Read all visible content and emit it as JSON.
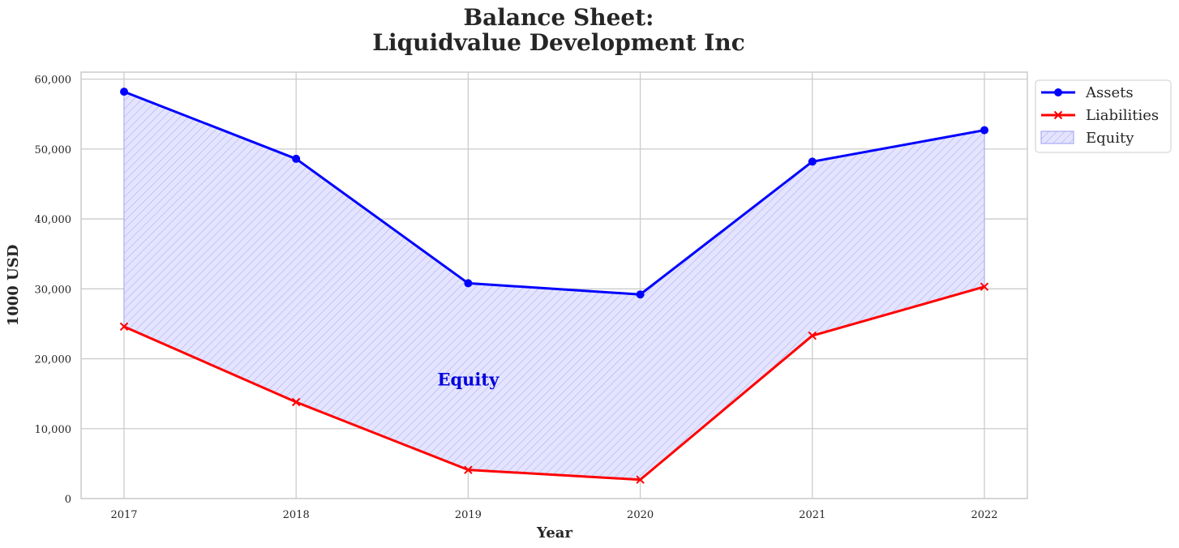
{
  "chart_data": {
    "type": "line",
    "title": "Balance Sheet:",
    "subtitle": "Liquidvalue Development Inc",
    "xlabel": "Year",
    "ylabel": "1000 USD",
    "categories": [
      "2017",
      "2018",
      "2019",
      "2020",
      "2021",
      "2022"
    ],
    "series": [
      {
        "name": "Assets",
        "values": [
          58200,
          48600,
          30800,
          29200,
          48200,
          52700
        ],
        "color": "#0000ff",
        "marker": "circle"
      },
      {
        "name": "Liabilities",
        "values": [
          24600,
          13800,
          4100,
          2700,
          23300,
          30300
        ],
        "color": "#ff0000",
        "marker": "x"
      }
    ],
    "fill": {
      "name": "Equity",
      "between": [
        "Assets",
        "Liabilities"
      ],
      "color": "#0000ff",
      "hatch": "////"
    },
    "annotation": {
      "text": "Equity",
      "x": "2019",
      "y": 17000,
      "color": "#0000dd"
    },
    "ylim": [
      0,
      61000
    ],
    "yticks": [
      0,
      10000,
      20000,
      30000,
      40000,
      50000,
      60000
    ],
    "ytick_labels": [
      "0",
      "10,000",
      "20,000",
      "30,000",
      "40,000",
      "50,000",
      "60,000"
    ],
    "grid": true,
    "legend": {
      "placement": "outside-top-right",
      "entries": [
        "Assets",
        "Liabilities",
        "Equity"
      ]
    }
  }
}
